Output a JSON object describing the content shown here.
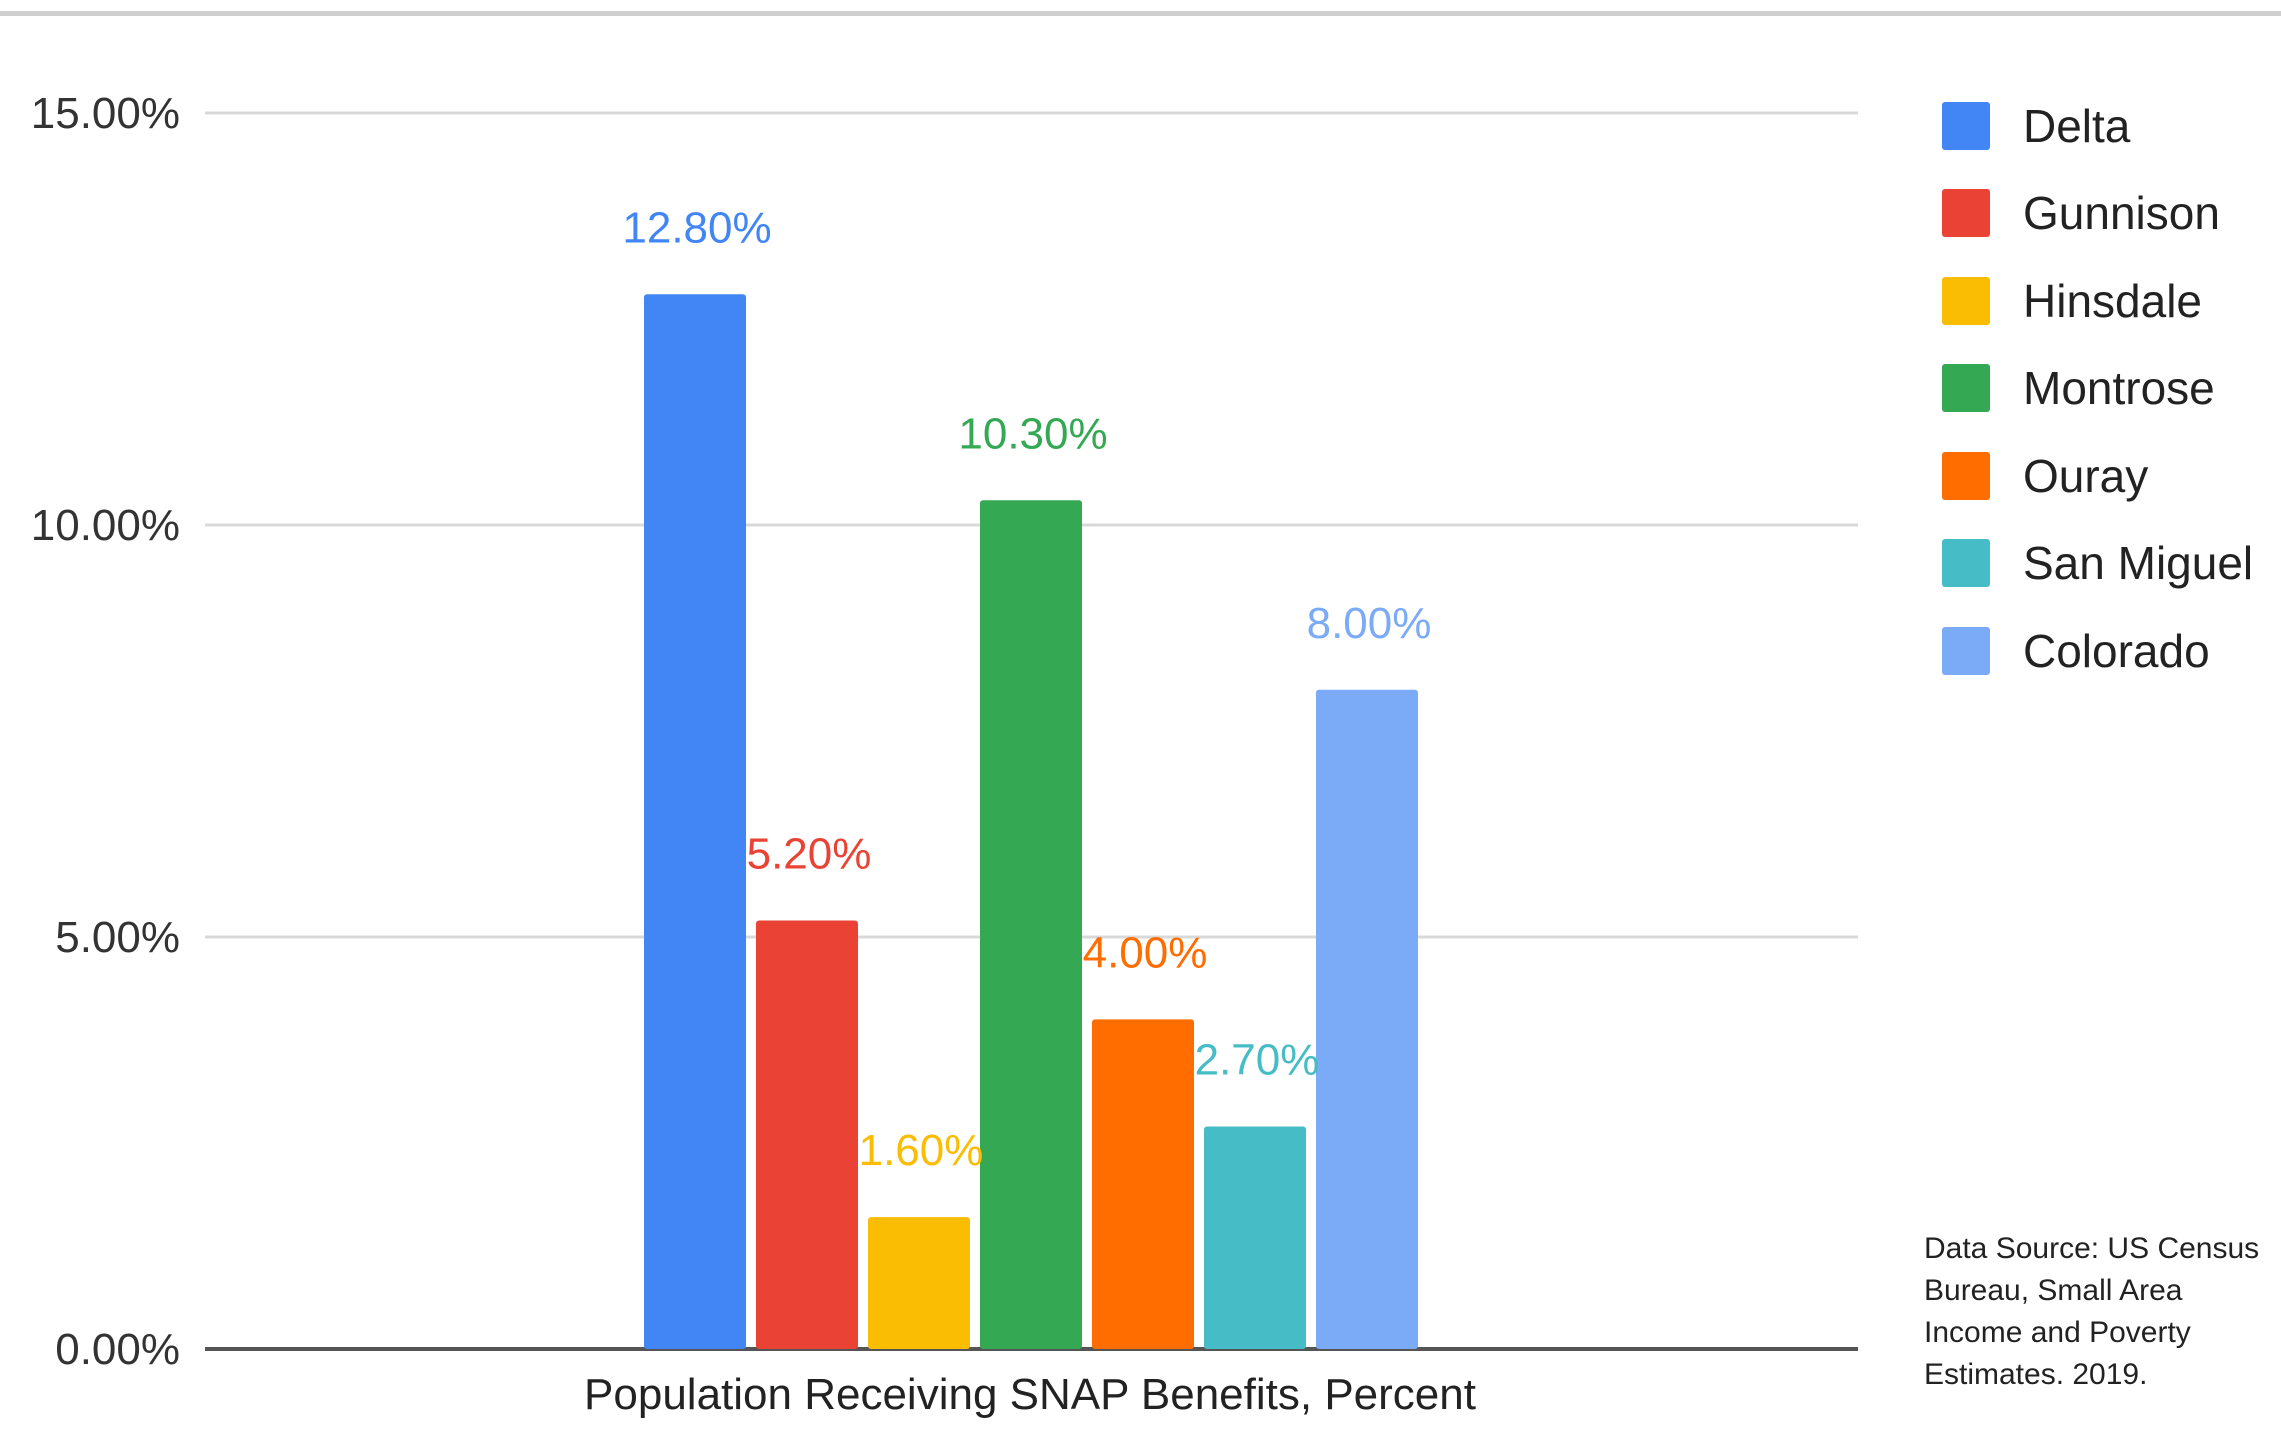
{
  "chart_data": {
    "type": "bar",
    "categories": [
      "Population Receiving SNAP Benefits, Percent"
    ],
    "xlabel": "Population Receiving SNAP Benefits, Percent",
    "ylabel": "",
    "ylim": [
      0,
      15
    ],
    "yticks": [
      {
        "value": 0,
        "label": "0.00%"
      },
      {
        "value": 5,
        "label": "5.00%"
      },
      {
        "value": 10,
        "label": "10.00%"
      },
      {
        "value": 15,
        "label": "15.00%"
      }
    ],
    "grid": true,
    "legend_position": "right",
    "series": [
      {
        "name": "Delta",
        "values": [
          12.8
        ],
        "label": "12.80%",
        "color": "#4285f4"
      },
      {
        "name": "Gunnison",
        "values": [
          5.2
        ],
        "label": "5.20%",
        "color": "#ea4335"
      },
      {
        "name": "Hinsdale",
        "values": [
          1.6
        ],
        "label": "1.60%",
        "color": "#fbbc04"
      },
      {
        "name": "Montrose",
        "values": [
          10.3
        ],
        "label": "10.30%",
        "color": "#34a853"
      },
      {
        "name": "Ouray",
        "values": [
          4.0
        ],
        "label": "4.00%",
        "color": "#ff6d01"
      },
      {
        "name": "San Miguel",
        "values": [
          2.7
        ],
        "label": "2.70%",
        "color": "#46bdc6"
      },
      {
        "name": "Colorado",
        "values": [
          8.0
        ],
        "label": "8.00%",
        "color": "#7baaf7"
      }
    ]
  },
  "source_note": "Data Source: US Census Bureau, Small Area Income and Poverty Estimates. 2019."
}
